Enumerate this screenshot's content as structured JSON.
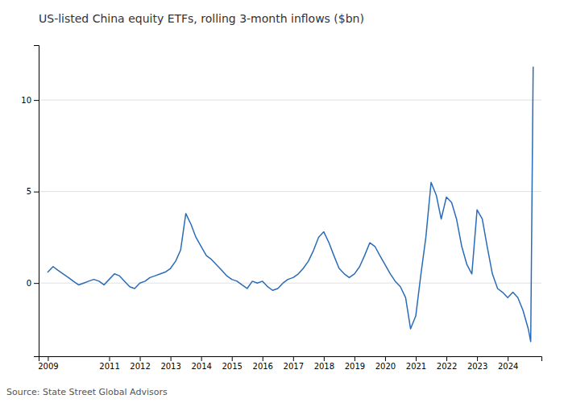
{
  "chart_data": {
    "type": "line",
    "title": "US-listed China equity ETFs, rolling 3-month inflows ($bn)",
    "annotations": [
      "Source: State Street Global Advisors"
    ],
    "color": "#2b6cb8",
    "grid": true,
    "xlim": [
      2008.7,
      2025.1
    ],
    "xticks": [
      2009,
      2011,
      2012,
      2013,
      2014,
      2015,
      2016,
      2017,
      2018,
      2019,
      2020,
      2021,
      2022,
      2023,
      2024
    ],
    "ylim": [
      -4.0,
      13.0
    ],
    "yticks": [
      0,
      5,
      10
    ],
    "x": [
      2009.0,
      2009.17,
      2009.33,
      2009.5,
      2009.67,
      2009.83,
      2010.0,
      2010.17,
      2010.33,
      2010.5,
      2010.67,
      2010.83,
      2011.0,
      2011.17,
      2011.33,
      2011.5,
      2011.67,
      2011.83,
      2012.0,
      2012.17,
      2012.33,
      2012.5,
      2012.67,
      2012.83,
      2013.0,
      2013.17,
      2013.33,
      2013.5,
      2013.67,
      2013.83,
      2014.0,
      2014.17,
      2014.33,
      2014.5,
      2014.67,
      2014.83,
      2015.0,
      2015.17,
      2015.33,
      2015.5,
      2015.67,
      2015.83,
      2016.0,
      2016.17,
      2016.33,
      2016.5,
      2016.67,
      2016.83,
      2017.0,
      2017.17,
      2017.33,
      2017.5,
      2017.67,
      2017.83,
      2018.0,
      2018.17,
      2018.33,
      2018.5,
      2018.67,
      2018.83,
      2019.0,
      2019.17,
      2019.33,
      2019.5,
      2019.67,
      2019.83,
      2020.0,
      2020.17,
      2020.33,
      2020.5,
      2020.67,
      2020.83,
      2021.0,
      2021.17,
      2021.33,
      2021.5,
      2021.67,
      2021.83,
      2022.0,
      2022.17,
      2022.33,
      2022.5,
      2022.67,
      2022.83,
      2023.0,
      2023.17,
      2023.33,
      2023.5,
      2023.67,
      2023.83,
      2024.0,
      2024.17,
      2024.33,
      2024.5,
      2024.67,
      2024.75,
      2024.83
    ],
    "values": [
      0.6,
      0.9,
      0.7,
      0.5,
      0.3,
      0.1,
      -0.1,
      0.0,
      0.1,
      0.2,
      0.1,
      -0.1,
      0.2,
      0.5,
      0.4,
      0.1,
      -0.2,
      -0.3,
      0.0,
      0.1,
      0.3,
      0.4,
      0.5,
      0.6,
      0.8,
      1.2,
      1.8,
      3.8,
      3.2,
      2.5,
      2.0,
      1.5,
      1.3,
      1.0,
      0.7,
      0.4,
      0.2,
      0.1,
      -0.1,
      -0.3,
      0.1,
      0.0,
      0.1,
      -0.2,
      -0.4,
      -0.3,
      0.0,
      0.2,
      0.3,
      0.5,
      0.8,
      1.2,
      1.8,
      2.5,
      2.8,
      2.2,
      1.5,
      0.8,
      0.5,
      0.3,
      0.5,
      0.9,
      1.5,
      2.2,
      2.0,
      1.5,
      1.0,
      0.5,
      0.1,
      -0.2,
      -0.8,
      -2.5,
      -1.8,
      0.5,
      2.5,
      5.5,
      4.8,
      3.5,
      4.7,
      4.4,
      3.5,
      2.0,
      1.0,
      0.5,
      4.0,
      3.5,
      2.0,
      0.5,
      -0.3,
      -0.5,
      -0.8,
      -0.5,
      -0.8,
      -1.5,
      -2.5,
      -3.2,
      11.8
    ]
  }
}
